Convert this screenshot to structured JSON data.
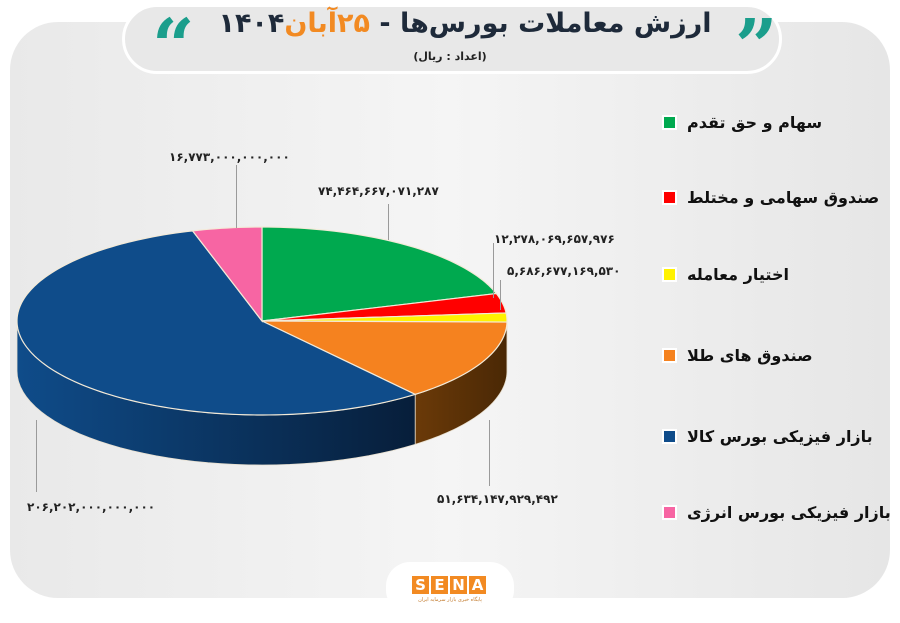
{
  "header": {
    "title_main": "ارزش معاملات بورس‌ها - ",
    "title_date": "۲۵آبان",
    "title_year": "۱۴۰۴",
    "subtitle": "(اعداد : ریال)",
    "quote_left": "“",
    "quote_right": "”",
    "accent_color": "#1b9e8c",
    "date_color": "#f28a22"
  },
  "legend": [
    {
      "label": "سهام و حق تقدم",
      "color": "#00a94f"
    },
    {
      "label": "صندوق سهامی و مختلط",
      "color": "#ff0000"
    },
    {
      "label": "اختیار معامله",
      "color": "#fff200"
    },
    {
      "label": "صندوق های طلا",
      "color": "#f5821f"
    },
    {
      "label": "بازار فیزیکی بورس کالا",
      "color": "#0f4c8a"
    },
    {
      "label": "بازار فیزیکی بورس انرژی",
      "color": "#f765a3"
    }
  ],
  "value_labels": {
    "green": "۷۴,۴۶۴,۶۶۷,۰۷۱,۲۸۷",
    "red": "۱۲,۲۷۸,۰۶۹,۶۵۷,۹۷۶",
    "yellow": "۵,۶۸۶,۶۷۷,۱۶۹,۵۳۰",
    "orange": "۵۱,۶۳۴,۱۴۷,۹۲۹,۴۹۲",
    "blue": "۲۰۶,۲۰۲,۰۰۰,۰۰۰,۰۰۰",
    "pink": "۱۶,۷۷۳,۰۰۰,۰۰۰,۰۰۰"
  },
  "footer": {
    "logo_letters": [
      "S",
      "E",
      "N",
      "A"
    ],
    "tagline": "پایگاه خبری بازار سرمایه ایران"
  },
  "chart_data": {
    "type": "pie",
    "title": "ارزش معاملات بورس‌ها - ۲۵آبان ۱۴۰۴",
    "subtitle": "(اعداد : ریال)",
    "unit": "ریال",
    "style": "3d",
    "categories": [
      "سهام و حق تقدم",
      "صندوق سهامی و مختلط",
      "اختیار معامله",
      "صندوق های طلا",
      "بازار فیزیکی بورس کالا",
      "بازار فیزیکی بورس انرژی"
    ],
    "values": [
      74464667071287,
      12278069657976,
      5686677169530,
      51634147929492,
      206202000000000,
      16773000000000
    ],
    "colors": [
      "#00a94f",
      "#ff0000",
      "#fff200",
      "#f5821f",
      "#0f4c8a",
      "#f765a3"
    ],
    "legend_position": "right"
  }
}
